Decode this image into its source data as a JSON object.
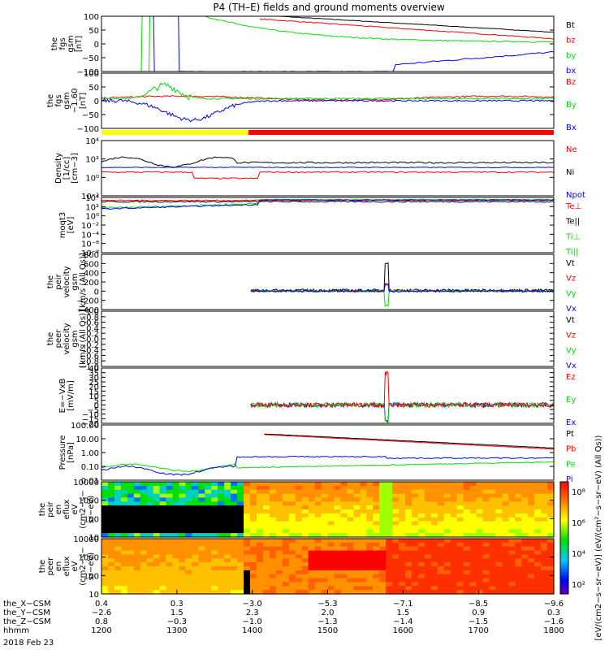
{
  "title": "P4 (TH–E) fields and ground moments overview",
  "colors": {
    "black": "#000000",
    "red": "#ff0000",
    "green": "#00dd00",
    "blue": "#0000ff",
    "yellow": "#ffff00"
  },
  "chart_data": [
    {
      "type": "line",
      "ylabel": [
        "the",
        "fgs",
        "gsm",
        "[nT]"
      ],
      "yticks": [
        "100",
        "50",
        "0",
        "−50",
        "−100"
      ],
      "series": [
        {
          "name": "Bt",
          "color": "black"
        },
        {
          "name": "bz",
          "color": "red"
        },
        {
          "name": "by",
          "color": "green"
        },
        {
          "name": "bx",
          "color": "blue"
        }
      ]
    },
    {
      "type": "line",
      "ylabel": [
        "the",
        "fgs",
        "gsm",
        "−1.60",
        "[nT]"
      ],
      "yticks": [
        "100",
        "50",
        "0",
        "−50",
        "−100"
      ],
      "series": [
        {
          "name": "Bz",
          "color": "red"
        },
        {
          "name": "By",
          "color": "green"
        },
        {
          "name": "Bx",
          "color": "blue"
        }
      ]
    },
    {
      "type": "line",
      "ylabel": [
        "Density",
        "[1/cc]",
        "[cm−3]"
      ],
      "yticks": [
        "10⁴",
        "10²",
        "10⁰",
        "10⁻²"
      ],
      "ylog": true,
      "series": [
        {
          "name": "Ne",
          "color": "red"
        },
        {
          "name": "Ni",
          "color": "black"
        },
        {
          "name": "Npot",
          "color": "blue"
        }
      ]
    },
    {
      "type": "line",
      "ylabel": [
        "moqt3",
        "[eV]"
      ],
      "yticks": [
        "10⁴",
        "10²",
        "10⁰",
        "10⁻²",
        "10⁻⁴",
        "10⁻⁶",
        "10⁻⁸"
      ],
      "ylog": true,
      "series": [
        {
          "name": "Te⊥",
          "color": "red"
        },
        {
          "name": "Te||",
          "color": "black"
        },
        {
          "name": "Ti⊥",
          "color": "green"
        },
        {
          "name": "Ti||",
          "color": "green"
        }
      ]
    },
    {
      "type": "line",
      "ylabel": [
        "the",
        "peir",
        "velocity",
        "gsm",
        "[km/s (All Qs)]"
      ],
      "yticks": [
        "800",
        "600",
        "400",
        "200",
        "0",
        "−200",
        "−400"
      ],
      "series": [
        {
          "name": "Vt",
          "color": "black"
        },
        {
          "name": "Vz",
          "color": "red"
        },
        {
          "name": "Vy",
          "color": "green"
        },
        {
          "name": "Vx",
          "color": "blue"
        }
      ]
    },
    {
      "type": "line",
      "ylabel": [
        "the",
        "peer",
        "velocity",
        "gsm",
        "[km/s (All Qs)]"
      ],
      "yticks": [
        "1.0",
        "0.8",
        "0.6",
        "0.4",
        "0.2",
        "0.0",
        "−0.2",
        "−0.4",
        "−0.6",
        "−0.8",
        "−1.0"
      ],
      "series": [
        {
          "name": "Vt",
          "color": "black"
        },
        {
          "name": "Vz",
          "color": "red"
        },
        {
          "name": "Vy",
          "color": "green"
        },
        {
          "name": "Vx",
          "color": "blue"
        }
      ]
    },
    {
      "type": "line",
      "ylabel": [
        "E=−VxB",
        "[mV/m]"
      ],
      "yticks": [
        "40",
        "35",
        "30",
        "25",
        "20",
        "15",
        "10",
        "5",
        "0",
        "−5",
        "−10",
        "−15",
        "−20"
      ],
      "series": [
        {
          "name": "Ez",
          "color": "red"
        },
        {
          "name": "Ey",
          "color": "green"
        },
        {
          "name": "Ex",
          "color": "blue"
        }
      ]
    },
    {
      "type": "line",
      "ylabel": [
        "Pressure",
        "[nPa]"
      ],
      "yticks": [
        "100.00",
        "10.00",
        "1.00",
        "0.10",
        "0.01"
      ],
      "ylog": true,
      "series": [
        {
          "name": "Pt",
          "color": "black"
        },
        {
          "name": "Pb",
          "color": "red"
        },
        {
          "name": "Pe",
          "color": "green"
        },
        {
          "name": "Pi",
          "color": "blue"
        }
      ]
    },
    {
      "type": "heatmap",
      "ylabel": [
        "the",
        "peir",
        "en",
        "eflux",
        "eV",
        "(cm2−s−",
        "sr−eV)"
      ],
      "yticks": [
        "10000",
        "1000",
        "100",
        "10"
      ]
    },
    {
      "type": "heatmap",
      "ylabel": [
        "the",
        "peer",
        "en",
        "eflux",
        "eV",
        "(cm2−s−",
        "sr−eV)"
      ],
      "yticks": [
        "10000",
        "1000",
        "100",
        "10"
      ]
    }
  ],
  "colorbar": {
    "ticks": [
      "10⁸",
      "10⁶",
      "10⁴",
      "10²"
    ],
    "label": "[eV/(cm2−s−sr−eV)] (eV/(cm²−s−sr−eV) (All Qs))"
  },
  "xaxis": {
    "rows": [
      {
        "label": "the_X−CSM",
        "values": [
          "0.4",
          "0.3",
          "−3.0",
          "−5.3",
          "−7.1",
          "−8.5",
          "−9.6"
        ]
      },
      {
        "label": "the_Y−CSM",
        "values": [
          "−2.6",
          "1.5",
          "2.3",
          "2.0",
          "1.5",
          "0.9",
          "0.3"
        ]
      },
      {
        "label": "the_Z−CSM",
        "values": [
          "0.8",
          "−0.3",
          "−1.0",
          "−1.3",
          "−1.4",
          "−1.5",
          "−1.6"
        ]
      },
      {
        "label": "hhmm",
        "values": [
          "1200",
          "1300",
          "1400",
          "1500",
          "1600",
          "1700",
          "1800"
        ]
      }
    ],
    "date": "2018 Feb 23"
  }
}
